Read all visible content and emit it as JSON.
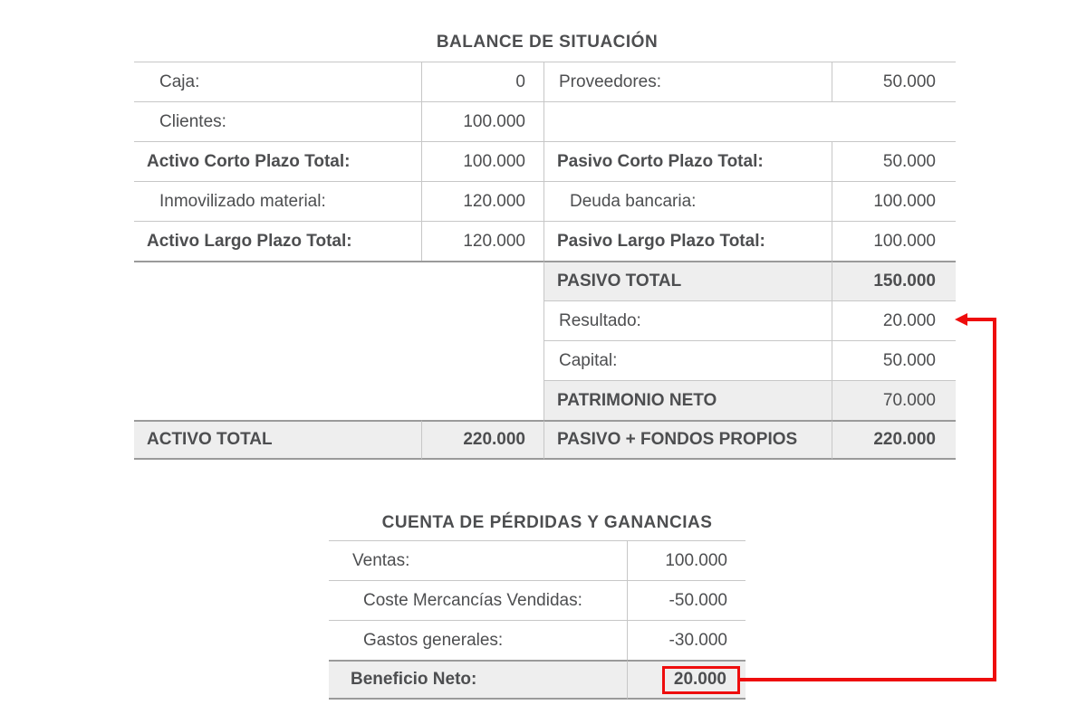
{
  "colors": {
    "text": "#4d4e50",
    "grid_light": "#c7c7c7",
    "grid_dark": "#9a9a9a",
    "highlight_bg": "#eeeeee",
    "accent_red": "#ee0d0d"
  },
  "balance": {
    "title": "BALANCE DE SITUACIÓN",
    "rows": [
      {
        "left_label": "Caja:",
        "left_value": "0",
        "right_label": "Proveedores:",
        "right_value": "50.000"
      },
      {
        "left_label": "Clientes:",
        "left_value": "100.000",
        "right_label": "",
        "right_value": ""
      },
      {
        "left_label": "Activo Corto Plazo Total:",
        "left_value": "100.000",
        "right_label": "Pasivo Corto Plazo Total:",
        "right_value": "50.000"
      },
      {
        "left_label": "Inmovilizado material:",
        "left_value": "120.000",
        "right_label": "Deuda bancaria:",
        "right_value": "100.000"
      },
      {
        "left_label": "Activo Largo Plazo Total:",
        "left_value": "120.000",
        "right_label": "Pasivo Largo Plazo Total:",
        "right_value": "100.000"
      },
      {
        "left_label": "",
        "left_value": "",
        "right_label": "PASIVO TOTAL",
        "right_value": "150.000"
      },
      {
        "left_label": "",
        "left_value": "",
        "right_label": "Resultado:",
        "right_value": "20.000"
      },
      {
        "left_label": "",
        "left_value": "",
        "right_label": "Capital:",
        "right_value": "50.000"
      },
      {
        "left_label": "",
        "left_value": "",
        "right_label": "PATRIMONIO NETO",
        "right_value": "70.000"
      },
      {
        "left_label": "ACTIVO TOTAL",
        "left_value": "220.000",
        "right_label": "PASIVO + FONDOS PROPIOS",
        "right_value": "220.000"
      }
    ]
  },
  "pnl": {
    "title": "CUENTA DE PÉRDIDAS Y GANANCIAS",
    "rows": [
      {
        "label": "Ventas:",
        "value": "100.000"
      },
      {
        "label": "Coste Mercancías Vendidas:",
        "value": "-50.000"
      },
      {
        "label": "Gastos generales:",
        "value": "-30.000"
      },
      {
        "label": "Beneficio Neto:",
        "value": "20.000"
      }
    ]
  },
  "annotation": {
    "arrow_meaning": "links Beneficio Neto (20.000) to Resultado (20.000)"
  }
}
